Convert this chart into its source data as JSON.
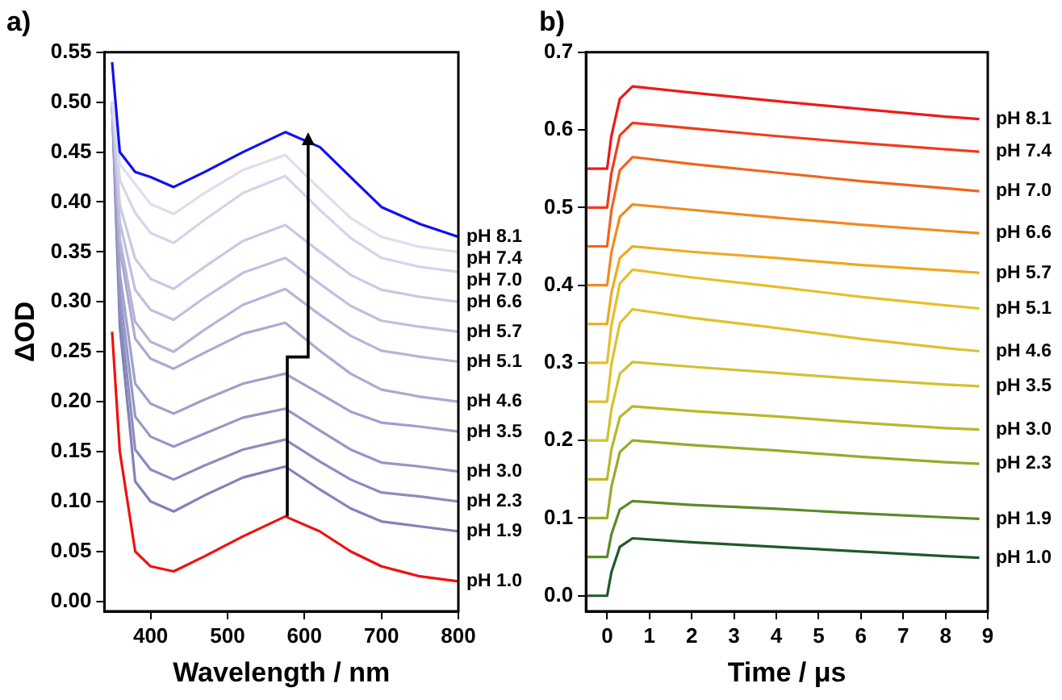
{
  "chart_data": [
    {
      "type": "line",
      "title": "a)",
      "xlabel": "Wavelength / nm",
      "ylabel": "ΔOD",
      "grid": false,
      "legend": false,
      "marker": "none",
      "xlim": [
        340,
        800
      ],
      "ylim": [
        -0.01,
        0.55
      ],
      "xticks": [
        400,
        500,
        600,
        700,
        800
      ],
      "yticks": [
        {
          "value": 0,
          "label": "0.00"
        },
        {
          "value": 0.05,
          "label": "0.05"
        },
        {
          "value": 0.1,
          "label": "0.10"
        },
        {
          "value": 0.15,
          "label": "0.15"
        },
        {
          "value": 0.2,
          "label": "0.20"
        },
        {
          "value": 0.25,
          "label": "0.25"
        },
        {
          "value": 0.3,
          "label": "0.30"
        },
        {
          "value": 0.35,
          "label": "0.35"
        },
        {
          "value": 0.4,
          "label": "0.40"
        },
        {
          "value": 0.45,
          "label": "0.45"
        },
        {
          "value": 0.5,
          "label": "0.50"
        },
        {
          "value": 0.55,
          "label": "0.55"
        }
      ],
      "x": [
        350,
        360,
        380,
        400,
        430,
        470,
        520,
        575,
        620,
        660,
        700,
        750,
        800
      ],
      "series": [
        {
          "name": "pH 8.1",
          "color": "#1010f0",
          "values": [
            0.54,
            0.45,
            0.43,
            0.425,
            0.415,
            0.43,
            0.45,
            0.47,
            0.455,
            0.425,
            0.395,
            0.378,
            0.365
          ]
        },
        {
          "name": "pH 7.4",
          "color": "#dedef0",
          "values": [
            0.5,
            0.438,
            0.418,
            0.398,
            0.388,
            0.409,
            0.432,
            0.447,
            0.413,
            0.384,
            0.365,
            0.355,
            0.35
          ]
        },
        {
          "name": "pH 7.0",
          "color": "#d4d4ea",
          "values": [
            0.5,
            0.422,
            0.389,
            0.369,
            0.359,
            0.382,
            0.409,
            0.426,
            0.392,
            0.364,
            0.344,
            0.335,
            0.33
          ]
        },
        {
          "name": "pH 6.6",
          "color": "#c9c9e4",
          "values": [
            0.5,
            0.397,
            0.343,
            0.323,
            0.313,
            0.335,
            0.361,
            0.377,
            0.35,
            0.327,
            0.312,
            0.305,
            0.3
          ]
        },
        {
          "name": "pH 5.7",
          "color": "#bfbfde",
          "values": [
            0.5,
            0.38,
            0.312,
            0.292,
            0.282,
            0.304,
            0.329,
            0.344,
            0.318,
            0.296,
            0.281,
            0.275,
            0.27
          ]
        },
        {
          "name": "pH 5.1",
          "color": "#b5b5d8",
          "values": [
            0.5,
            0.363,
            0.28,
            0.26,
            0.25,
            0.272,
            0.297,
            0.313,
            0.287,
            0.266,
            0.251,
            0.245,
            0.24
          ]
        },
        {
          "name": "pH 4.6",
          "color": "#aaaad2",
          "values": [
            0.5,
            0.353,
            0.263,
            0.243,
            0.233,
            0.249,
            0.268,
            0.279,
            0.251,
            0.228,
            0.212,
            0.205,
            0.2
          ]
        },
        {
          "name": "pH 3.5",
          "color": "#a0a0cc",
          "values": [
            0.5,
            0.328,
            0.218,
            0.198,
            0.188,
            0.202,
            0.218,
            0.228,
            0.208,
            0.19,
            0.179,
            0.175,
            0.17
          ]
        },
        {
          "name": "pH 3.0",
          "color": "#9696c6",
          "values": [
            0.5,
            0.31,
            0.185,
            0.165,
            0.155,
            0.168,
            0.184,
            0.193,
            0.171,
            0.152,
            0.139,
            0.135,
            0.13
          ]
        },
        {
          "name": "pH 2.3",
          "color": "#8c8cc0",
          "values": [
            0.5,
            0.292,
            0.152,
            0.132,
            0.122,
            0.136,
            0.152,
            0.162,
            0.14,
            0.122,
            0.109,
            0.105,
            0.1
          ]
        },
        {
          "name": "pH 1.9",
          "color": "#8282ba",
          "values": [
            0.5,
            0.275,
            0.12,
            0.1,
            0.09,
            0.106,
            0.124,
            0.135,
            0.112,
            0.093,
            0.08,
            0.075,
            0.07
          ]
        },
        {
          "name": "pH 1.0",
          "color": "#f01010",
          "values": [
            0.27,
            0.15,
            0.05,
            0.035,
            0.03,
            0.045,
            0.065,
            0.085,
            0.07,
            0.05,
            0.035,
            0.025,
            0.02
          ]
        }
      ]
    },
    {
      "type": "line",
      "title": "b)",
      "xlabel": "Time / μs",
      "grid": false,
      "legend": false,
      "marker": "none",
      "xlim": [
        -0.5,
        9
      ],
      "ylim": [
        -0.02,
        0.7
      ],
      "xticks": [
        0,
        1,
        2,
        3,
        4,
        5,
        6,
        7,
        8,
        9
      ],
      "yticks": [
        {
          "value": 0,
          "label": "0.0"
        },
        0.1,
        0.2,
        0.3,
        0.4,
        0.5,
        0.6,
        0.7
      ],
      "x": [
        -0.5,
        -0.1,
        0,
        0.1,
        0.3,
        0.6,
        2,
        4,
        6,
        8,
        8.8
      ],
      "series": [
        {
          "name": "pH 8.1",
          "color": "#f01818",
          "values": [
            0.55,
            0.55,
            0.55,
            0.592,
            0.64,
            0.656,
            0.648,
            0.637,
            0.627,
            0.617,
            0.614
          ]
        },
        {
          "name": "pH 7.4",
          "color": "#f03c1c",
          "values": [
            0.5,
            0.5,
            0.5,
            0.544,
            0.593,
            0.609,
            0.602,
            0.592,
            0.583,
            0.575,
            0.572
          ]
        },
        {
          "name": "pH 7.0",
          "color": "#f0641e",
          "values": [
            0.45,
            0.45,
            0.45,
            0.496,
            0.548,
            0.565,
            0.556,
            0.545,
            0.534,
            0.525,
            0.521
          ]
        },
        {
          "name": "pH 6.6",
          "color": "#f08a1e",
          "values": [
            0.4,
            0.4,
            0.4,
            0.442,
            0.488,
            0.504,
            0.497,
            0.487,
            0.478,
            0.47,
            0.467
          ]
        },
        {
          "name": "pH 5.7",
          "color": "#f0a820",
          "values": [
            0.35,
            0.35,
            0.35,
            0.39,
            0.435,
            0.45,
            0.443,
            0.435,
            0.426,
            0.419,
            0.416
          ]
        },
        {
          "name": "pH 5.1",
          "color": "#e8be28",
          "values": [
            0.3,
            0.3,
            0.3,
            0.348,
            0.402,
            0.42,
            0.41,
            0.398,
            0.385,
            0.374,
            0.37
          ]
        },
        {
          "name": "pH 4.6",
          "color": "#e0c030",
          "values": [
            0.25,
            0.25,
            0.25,
            0.298,
            0.351,
            0.369,
            0.358,
            0.345,
            0.331,
            0.319,
            0.315
          ]
        },
        {
          "name": "pH 3.5",
          "color": "#d4c030",
          "values": [
            0.2,
            0.2,
            0.2,
            0.24,
            0.286,
            0.301,
            0.295,
            0.287,
            0.279,
            0.272,
            0.27
          ]
        },
        {
          "name": "pH 3.0",
          "color": "#b8b828",
          "values": [
            0.15,
            0.15,
            0.15,
            0.188,
            0.23,
            0.244,
            0.238,
            0.231,
            0.223,
            0.216,
            0.214
          ]
        },
        {
          "name": "pH 2.3",
          "color": "#98aa28",
          "values": [
            0.1,
            0.1,
            0.1,
            0.14,
            0.185,
            0.2,
            0.194,
            0.187,
            0.179,
            0.172,
            0.17
          ]
        },
        {
          "name": "pH 1.9",
          "color": "#5a8a28",
          "values": [
            0.05,
            0.05,
            0.05,
            0.079,
            0.111,
            0.122,
            0.117,
            0.112,
            0.106,
            0.101,
            0.099
          ]
        },
        {
          "name": "pH 1.0",
          "color": "#1e5a28",
          "values": [
            0,
            0,
            0,
            0.03,
            0.063,
            0.074,
            0.069,
            0.063,
            0.057,
            0.051,
            0.049
          ]
        }
      ]
    }
  ]
}
